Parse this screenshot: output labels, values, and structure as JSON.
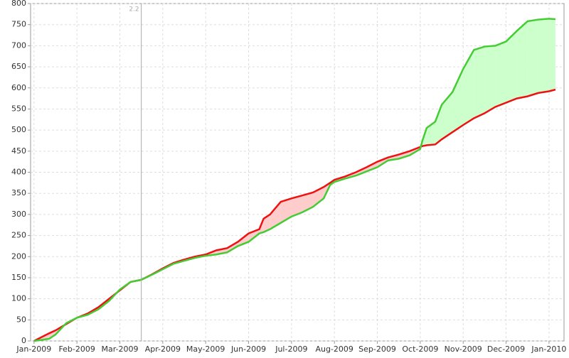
{
  "chart_data": {
    "type": "line",
    "x": [
      0,
      0.35,
      0.5,
      0.75,
      1,
      1.25,
      1.5,
      1.75,
      2,
      2.25,
      2.5,
      2.75,
      3,
      3.25,
      3.5,
      3.75,
      4,
      4.25,
      4.5,
      4.75,
      5,
      5.25,
      5.35,
      5.5,
      5.75,
      6,
      6.25,
      6.5,
      6.75,
      6.9,
      7,
      7.25,
      7.5,
      7.75,
      8,
      8.25,
      8.5,
      8.75,
      9,
      9.05,
      9.15,
      9.35,
      9.5,
      9.75,
      10,
      10.25,
      10.5,
      10.75,
      11,
      11.25,
      11.5,
      11.75,
      12,
      12.15
    ],
    "series": [
      {
        "color": "#ee1111",
        "values": [
          0,
          18,
          25,
          40,
          55,
          65,
          80,
          100,
          120,
          140,
          145,
          158,
          172,
          185,
          193,
          200,
          205,
          215,
          220,
          235,
          255,
          265,
          290,
          300,
          330,
          338,
          345,
          352,
          365,
          375,
          382,
          390,
          400,
          412,
          425,
          435,
          442,
          450,
          460,
          462,
          464,
          466,
          478,
          495,
          512,
          528,
          540,
          555,
          565,
          575,
          580,
          588,
          592,
          596
        ]
      },
      {
        "color": "#44cc33",
        "values": [
          0,
          5,
          15,
          42,
          55,
          62,
          75,
          95,
          122,
          140,
          145,
          157,
          170,
          183,
          190,
          197,
          202,
          205,
          210,
          225,
          235,
          255,
          258,
          265,
          280,
          295,
          305,
          318,
          338,
          370,
          377,
          385,
          392,
          402,
          412,
          428,
          432,
          440,
          455,
          475,
          505,
          520,
          560,
          590,
          645,
          690,
          698,
          700,
          710,
          735,
          758,
          762,
          764,
          763
        ]
      }
    ],
    "fill_colors": {
      "above": "#ccffcc",
      "below": "#ffcccc"
    },
    "xlim": [
      -0.08,
      12.35
    ],
    "xticks": [
      {
        "value": 0,
        "label": "Jan-2009"
      },
      {
        "value": 1,
        "label": "Feb-2009"
      },
      {
        "value": 2,
        "label": "Mar-2009"
      },
      {
        "value": 3,
        "label": "Apr-2009"
      },
      {
        "value": 4,
        "label": "May-2009"
      },
      {
        "value": 5,
        "label": "Jun-2009"
      },
      {
        "value": 6,
        "label": "Jul-2009"
      },
      {
        "value": 7,
        "label": "Aug-2009"
      },
      {
        "value": 8,
        "label": "Sep-2009"
      },
      {
        "value": 9,
        "label": "Oct-2009"
      },
      {
        "value": 10,
        "label": "Nov-2009"
      },
      {
        "value": 11,
        "label": "Dec-2009"
      },
      {
        "value": 12,
        "label": "Jan-2010"
      }
    ],
    "ylim": [
      0,
      800
    ],
    "yticks": [
      0,
      50,
      100,
      150,
      200,
      250,
      300,
      350,
      400,
      450,
      500,
      550,
      600,
      650,
      700,
      750,
      800
    ],
    "grid": true,
    "markers": [
      {
        "x": 2.5,
        "label": "2.2"
      }
    ]
  }
}
